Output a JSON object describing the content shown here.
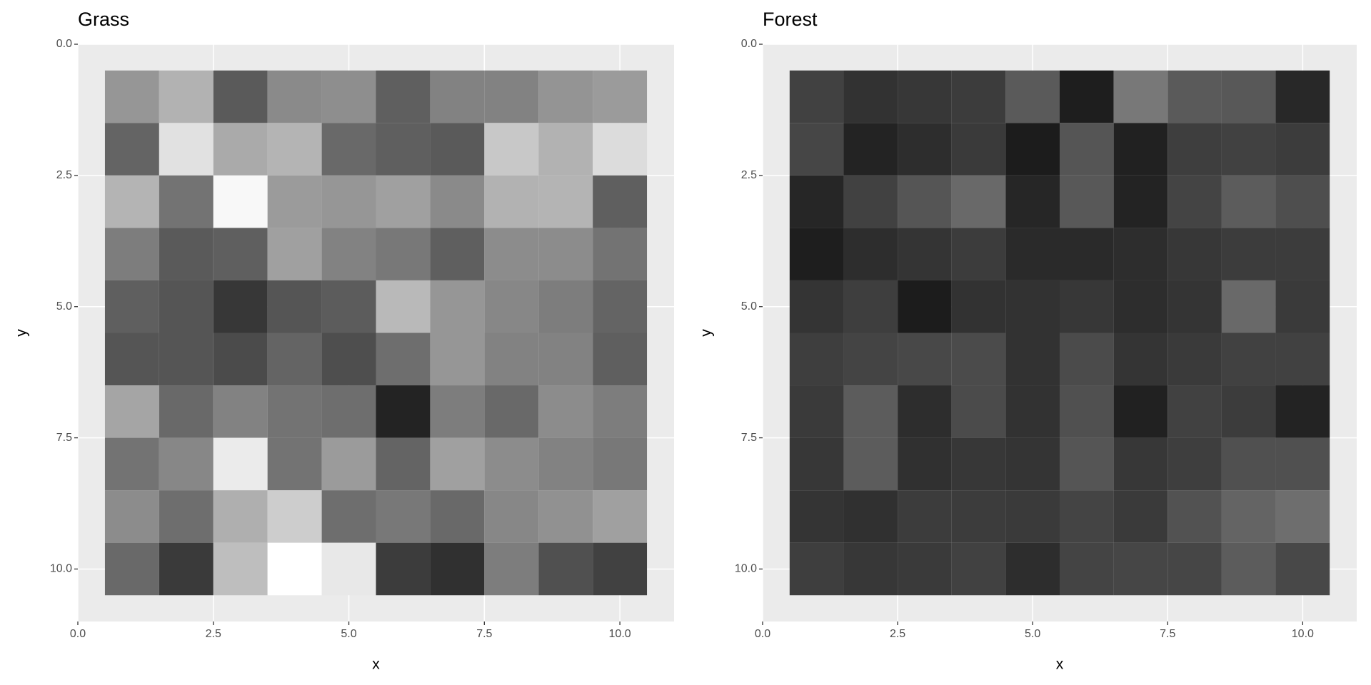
{
  "chart_data": [
    {
      "type": "heatmap",
      "title": "Grass",
      "xlabel": "x",
      "ylabel": "y",
      "x": [
        1,
        2,
        3,
        4,
        5,
        6,
        7,
        8,
        9,
        10
      ],
      "y": [
        1,
        2,
        3,
        4,
        5,
        6,
        7,
        8,
        9,
        10
      ],
      "values": [
        [
          150,
          178,
          90,
          138,
          142,
          95,
          130,
          130,
          148,
          155
        ],
        [
          100,
          225,
          170,
          180,
          105,
          95,
          90,
          200,
          178,
          220
        ],
        [
          180,
          115,
          248,
          155,
          150,
          160,
          138,
          178,
          180,
          95
        ],
        [
          125,
          90,
          95,
          160,
          130,
          120,
          95,
          140,
          140,
          115
        ],
        [
          95,
          85,
          55,
          85,
          92,
          185,
          150,
          135,
          125,
          100
        ],
        [
          85,
          85,
          75,
          100,
          78,
          110,
          150,
          130,
          130,
          95
        ],
        [
          165,
          105,
          130,
          115,
          110,
          35,
          125,
          105,
          140,
          125
        ],
        [
          115,
          135,
          235,
          115,
          155,
          100,
          160,
          140,
          130,
          120
        ],
        [
          140,
          110,
          175,
          205,
          110,
          120,
          105,
          135,
          145,
          160
        ],
        [
          105,
          58,
          190,
          255,
          232,
          60,
          48,
          125,
          80,
          65
        ]
      ],
      "xlim": [
        0,
        11
      ],
      "ylim": [
        0,
        11
      ],
      "y_reversed": true,
      "xticks": [
        {
          "value": 0,
          "label": "0.0"
        },
        2.5,
        {
          "value": 5,
          "label": "5.0"
        },
        7.5,
        {
          "value": 10,
          "label": "10.0"
        }
      ],
      "yticks": [
        {
          "value": 0,
          "label": "0.0"
        },
        2.5,
        {
          "value": 5,
          "label": "5.0"
        },
        7.5,
        {
          "value": 10,
          "label": "10.0"
        }
      ],
      "grid": true
    },
    {
      "type": "heatmap",
      "title": "Forest",
      "xlabel": "x",
      "ylabel": "y",
      "x": [
        1,
        2,
        3,
        4,
        5,
        6,
        7,
        8,
        9,
        10
      ],
      "y": [
        1,
        2,
        3,
        4,
        5,
        6,
        7,
        8,
        9,
        10
      ],
      "values": [
        [
          65,
          50,
          55,
          60,
          90,
          30,
          120,
          90,
          88,
          40
        ],
        [
          70,
          35,
          45,
          58,
          28,
          85,
          33,
          62,
          65,
          60
        ],
        [
          38,
          65,
          85,
          105,
          38,
          88,
          35,
          68,
          92,
          78
        ],
        [
          30,
          45,
          52,
          60,
          42,
          42,
          45,
          55,
          60,
          60
        ],
        [
          52,
          62,
          28,
          50,
          50,
          55,
          45,
          52,
          105,
          58
        ],
        [
          62,
          68,
          72,
          75,
          50,
          75,
          52,
          58,
          65,
          65
        ],
        [
          58,
          92,
          45,
          75,
          50,
          80,
          33,
          65,
          60,
          35
        ],
        [
          55,
          92,
          48,
          55,
          52,
          85,
          55,
          62,
          80,
          80
        ],
        [
          52,
          48,
          60,
          60,
          58,
          68,
          58,
          82,
          100,
          110
        ],
        [
          62,
          55,
          58,
          65,
          45,
          68,
          70,
          70,
          92,
          72
        ]
      ],
      "xlim": [
        0,
        11
      ],
      "ylim": [
        0,
        11
      ],
      "y_reversed": true,
      "xticks": [
        {
          "value": 0,
          "label": "0.0"
        },
        2.5,
        {
          "value": 5,
          "label": "5.0"
        },
        7.5,
        {
          "value": 10,
          "label": "10.0"
        }
      ],
      "yticks": [
        {
          "value": 0,
          "label": "0.0"
        },
        2.5,
        {
          "value": 5,
          "label": "5.0"
        },
        7.5,
        {
          "value": 10,
          "label": "10.0"
        }
      ],
      "grid": true
    }
  ]
}
